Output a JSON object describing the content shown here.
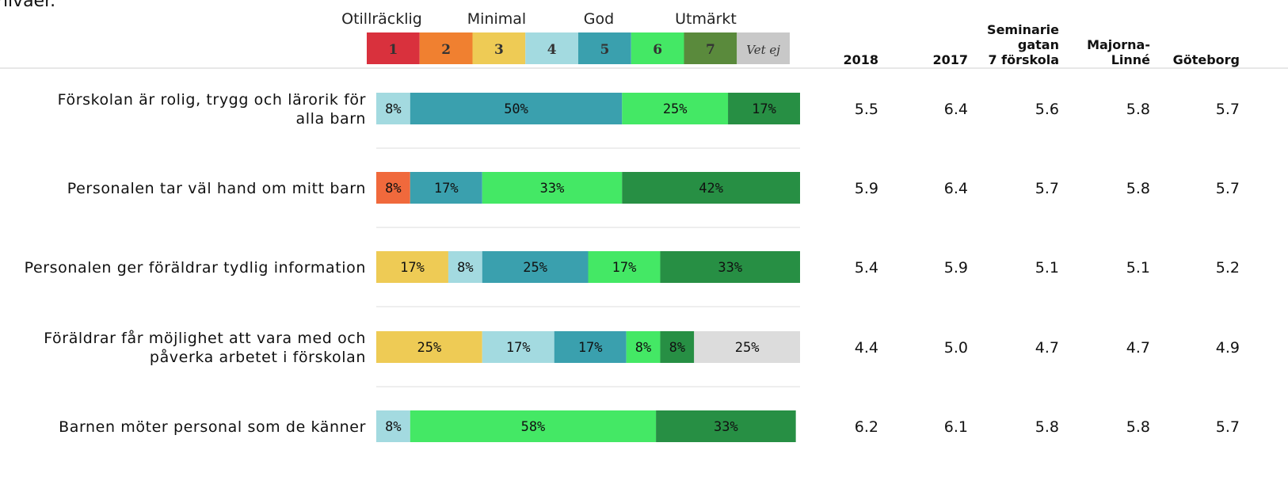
{
  "top_cut_text": "nivåer.",
  "scale": {
    "words": [
      "Otillräcklig",
      "Minimal",
      "God",
      "Utmärkt"
    ],
    "boxes": [
      {
        "label": "1",
        "color": "#d9313d"
      },
      {
        "label": "2",
        "color": "#f08030"
      },
      {
        "label": "3",
        "color": "#eecb55"
      },
      {
        "label": "4",
        "color": "#a3dae0"
      },
      {
        "label": "5",
        "color": "#3aa0ae"
      },
      {
        "label": "6",
        "color": "#44e865"
      },
      {
        "label": "7",
        "color": "#5a8a3c"
      },
      {
        "label": "Vet ej",
        "color": "#c8c8c8"
      }
    ]
  },
  "columns": [
    "2018",
    "2017",
    "Seminarie gatan 7 förskola",
    "Majorna- Linné",
    "Göteborg"
  ],
  "chart_data": {
    "type": "bar",
    "stacked": true,
    "orientation": "horizontal",
    "unit": "%",
    "categories": [
      "Förskolan är rolig, trygg och lärorik för alla barn",
      "Personalen tar väl hand om mitt barn",
      "Personalen ger föräldrar tydlig information",
      "Föräldrar får möjlighet att vara med och påverka arbetet i förskolan",
      "Barnen möter personal som de känner"
    ],
    "series": [
      {
        "name": "1",
        "color": "#d9313d",
        "values": [
          0,
          0,
          0,
          0,
          0
        ]
      },
      {
        "name": "2",
        "color": "#f0693c",
        "values": [
          0,
          8,
          0,
          0,
          0
        ]
      },
      {
        "name": "3",
        "color": "#eecb55",
        "values": [
          0,
          0,
          17,
          25,
          0
        ]
      },
      {
        "name": "4",
        "color": "#a3dae0",
        "values": [
          8,
          0,
          8,
          17,
          8
        ]
      },
      {
        "name": "5",
        "color": "#3aa0ae",
        "values": [
          50,
          17,
          25,
          17,
          0
        ]
      },
      {
        "name": "6",
        "color": "#44e865",
        "values": [
          25,
          33,
          17,
          8,
          58
        ]
      },
      {
        "name": "7",
        "color": "#278f44",
        "values": [
          17,
          42,
          33,
          8,
          33
        ]
      },
      {
        "name": "Vet ej",
        "color": "#dcdcdc",
        "values": [
          0,
          0,
          0,
          25,
          0
        ]
      }
    ],
    "xlim": [
      0,
      100
    ],
    "grid": false,
    "table": {
      "2018": [
        "5.5",
        "5.9",
        "5.4",
        "4.4",
        "6.2"
      ],
      "2017": [
        "6.4",
        "6.4",
        "5.9",
        "5.0",
        "6.1"
      ],
      "Seminarie gatan 7 förskola": [
        "5.6",
        "5.7",
        "5.1",
        "4.7",
        "5.8"
      ],
      "Majorna- Linné": [
        "5.8",
        "5.8",
        "5.1",
        "4.7",
        "5.8"
      ],
      "Göteborg": [
        "5.7",
        "5.7",
        "5.2",
        "4.9",
        "5.7"
      ]
    }
  }
}
